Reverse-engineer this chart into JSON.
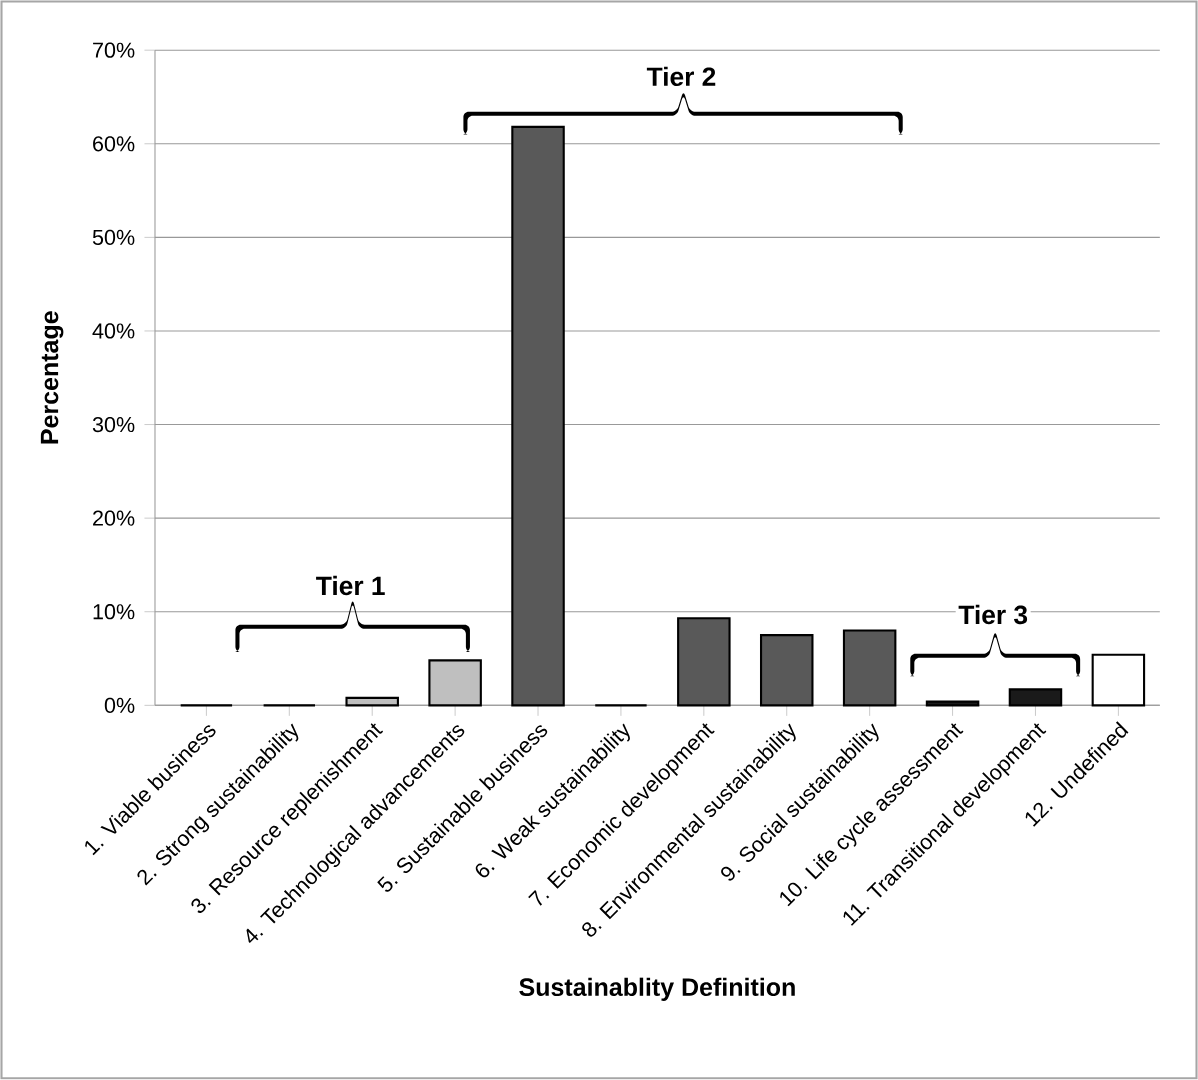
{
  "chart_data": {
    "type": "bar",
    "xlabel": "Sustainablity   Definition",
    "ylabel": "Percentage",
    "categories": [
      "1. Viable business",
      "2. Strong sustainability",
      "3. Resource replenishment",
      "4. Technological advancements",
      "5. Sustainable business",
      "6. Weak sustainability",
      "7. Economic development",
      "8. Environmental sustainability",
      "9. Social sustainability",
      "10. Life cycle assessment",
      "11. Transitional development",
      "12. Undefined"
    ],
    "values": [
      0,
      0,
      0.8,
      4.8,
      61.8,
      0,
      9.3,
      7.5,
      8.0,
      0.4,
      1.7,
      5.4
    ],
    "colors": [
      "#bfbfbf",
      "#bfbfbf",
      "#bfbfbf",
      "#bfbfbf",
      "#595959",
      "#595959",
      "#595959",
      "#595959",
      "#595959",
      "#1a1a1a",
      "#1a1a1a",
      "#ffffff"
    ],
    "ylim": [
      0,
      70
    ],
    "yticks": [
      {
        "value": 0,
        "label": "0%"
      },
      {
        "value": 10,
        "label": "10%"
      },
      {
        "value": 20,
        "label": "20%"
      },
      {
        "value": 30,
        "label": "30%"
      },
      {
        "value": 40,
        "label": "40%"
      },
      {
        "value": 50,
        "label": "50%"
      },
      {
        "value": 60,
        "label": "60%"
      },
      {
        "value": 70,
        "label": "70%"
      }
    ],
    "grid": "y",
    "annotations": [
      "Tier 1",
      "Tier 2",
      "Tier 3"
    ]
  }
}
